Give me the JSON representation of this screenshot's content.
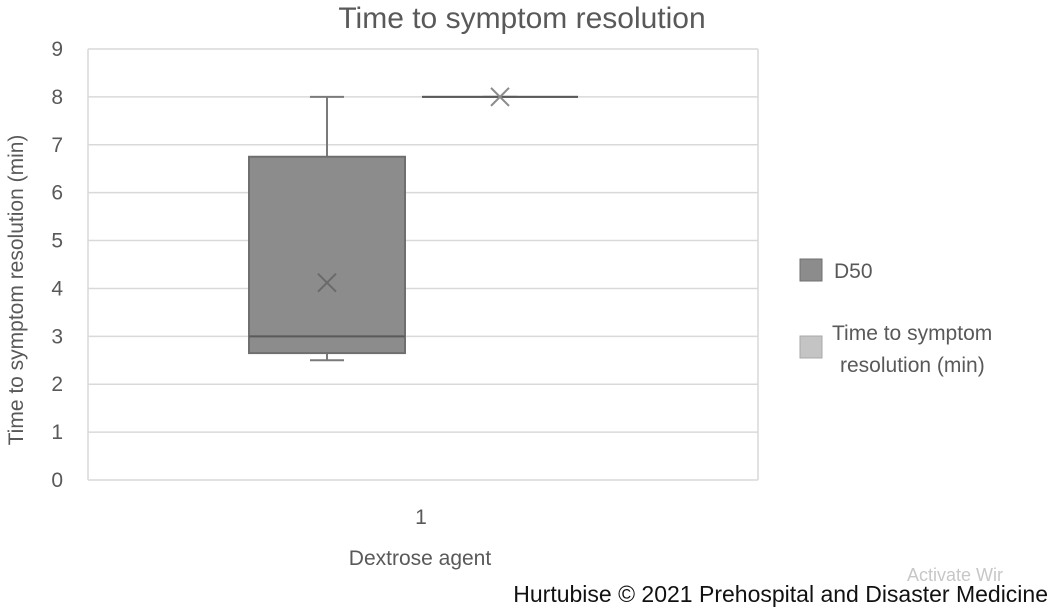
{
  "chart_data": {
    "type": "box",
    "title": "Time to symptom resolution",
    "xlabel": "Dextrose agent",
    "ylabel": "Time to symptom resolution (min)",
    "categories": [
      "1"
    ],
    "ylim": [
      0,
      9
    ],
    "yticks": [
      "0",
      "1",
      "2",
      "3",
      "4",
      "5",
      "6",
      "7",
      "8",
      "9"
    ],
    "grid": true,
    "legend_position": "right",
    "series": [
      {
        "name": "D50",
        "color": "#8c8c8c",
        "min": 2.5,
        "q1": 2.65,
        "median": 3.0,
        "q3": 6.75,
        "max": 8.0,
        "mean": 4.12
      },
      {
        "name": "Time to symptom resolution (min)",
        "color": "#c4c4c4",
        "min": 8.0,
        "q1": 8.0,
        "median": 8.0,
        "q3": 8.0,
        "max": 8.0,
        "mean": 8.0
      }
    ]
  },
  "watermark": "Activate Wir",
  "credit": "Hurtubise © 2021 Prehospital and Disaster Medicine"
}
